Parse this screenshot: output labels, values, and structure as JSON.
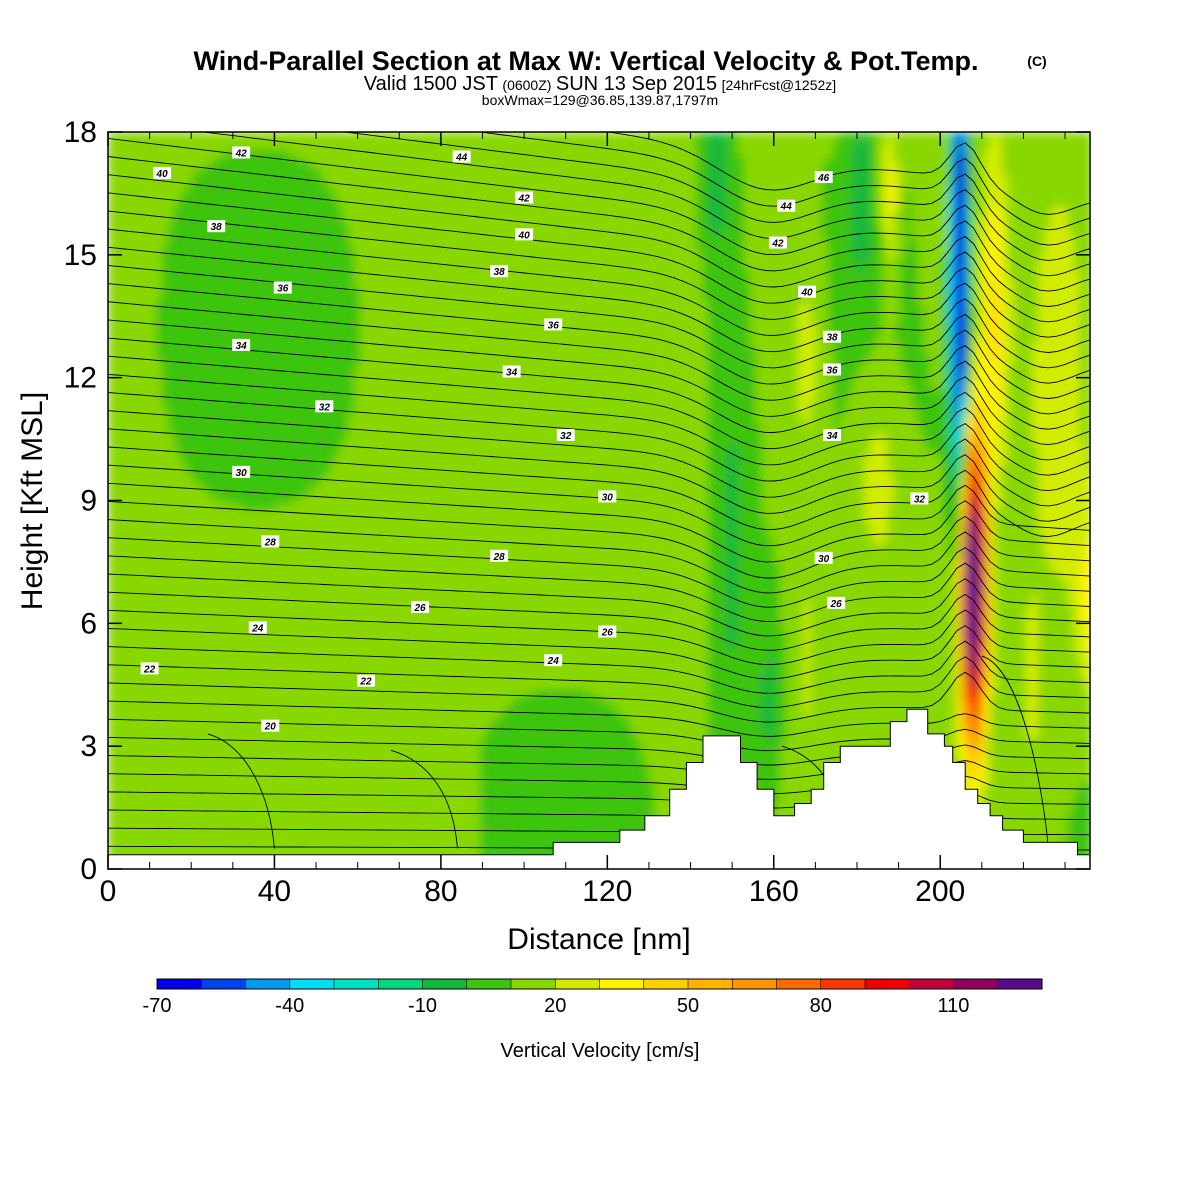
{
  "chart_data": {
    "type": "contour",
    "title": "Wind-Parallel Section at Max W: Vertical Velocity & Pot.Temp.",
    "title_mark": "(C)",
    "subtitle_line1_main": "Valid 1500 JST",
    "subtitle_line1_utc": "(0600Z)",
    "subtitle_line1_date": "SUN 13 Sep 2015",
    "subtitle_line1_fcst": "[24hrFcst@1252z]",
    "subtitle_line2": "boxWmax=129@36.85,139.87,1797m",
    "xlabel": "Distance [nm]",
    "ylabel": "Height [Kft MSL]",
    "xlim": [
      0,
      236
    ],
    "ylim": [
      0,
      18
    ],
    "x_ticks": [
      0,
      40,
      80,
      120,
      160,
      200
    ],
    "y_ticks": [
      0,
      3,
      6,
      9,
      12,
      15,
      18
    ],
    "colorbar": {
      "label": "Vertical Velocity [cm/s]",
      "levels": [
        -70,
        -40,
        -10,
        20,
        50,
        80,
        110
      ],
      "tick_labels": [
        "-70",
        "-40",
        "-10",
        "20",
        "50",
        "80",
        "110"
      ],
      "colors": [
        "#0000ee",
        "#0044f0",
        "#0099ee",
        "#00ddf5",
        "#00e0c4",
        "#00d67a",
        "#12b83c",
        "#3cc40e",
        "#88d800",
        "#d2ec00",
        "#fff200",
        "#ffd000",
        "#ffb100",
        "#ff9400",
        "#ff6a00",
        "#ff3800",
        "#ee0000",
        "#c2003a",
        "#8f0060",
        "#5a0a8c"
      ]
    },
    "contour_labels": [
      {
        "text": "42",
        "x": 32,
        "y": 17.5
      },
      {
        "text": "44",
        "x": 85,
        "y": 17.4
      },
      {
        "text": "40",
        "x": 13,
        "y": 17.0
      },
      {
        "text": "46",
        "x": 172,
        "y": 16.9
      },
      {
        "text": "42",
        "x": 100,
        "y": 16.4
      },
      {
        "text": "44",
        "x": 163,
        "y": 16.2
      },
      {
        "text": "38",
        "x": 26,
        "y": 15.7
      },
      {
        "text": "40",
        "x": 100,
        "y": 15.5
      },
      {
        "text": "42",
        "x": 161,
        "y": 15.3
      },
      {
        "text": "38",
        "x": 94,
        "y": 14.6
      },
      {
        "text": "36",
        "x": 42,
        "y": 14.2
      },
      {
        "text": "40",
        "x": 168,
        "y": 14.1
      },
      {
        "text": "36",
        "x": 107,
        "y": 13.3
      },
      {
        "text": "38",
        "x": 174,
        "y": 13.0
      },
      {
        "text": "34",
        "x": 32,
        "y": 12.8
      },
      {
        "text": "36",
        "x": 174,
        "y": 12.2
      },
      {
        "text": "34",
        "x": 97,
        "y": 12.15
      },
      {
        "text": "32",
        "x": 52,
        "y": 11.3
      },
      {
        "text": "32",
        "x": 110,
        "y": 10.6
      },
      {
        "text": "34",
        "x": 174,
        "y": 10.6
      },
      {
        "text": "30",
        "x": 32,
        "y": 9.7
      },
      {
        "text": "30",
        "x": 120,
        "y": 9.1
      },
      {
        "text": "32",
        "x": 195,
        "y": 9.05
      },
      {
        "text": "28",
        "x": 39,
        "y": 8.0
      },
      {
        "text": "28",
        "x": 94,
        "y": 7.65
      },
      {
        "text": "30",
        "x": 172,
        "y": 7.6
      },
      {
        "text": "26",
        "x": 75,
        "y": 6.4
      },
      {
        "text": "26",
        "x": 175,
        "y": 6.5
      },
      {
        "text": "24",
        "x": 36,
        "y": 5.9
      },
      {
        "text": "26",
        "x": 120,
        "y": 5.8
      },
      {
        "text": "24",
        "x": 107,
        "y": 5.1
      },
      {
        "text": "22",
        "x": 10,
        "y": 4.9
      },
      {
        "text": "22",
        "x": 62,
        "y": 4.6
      },
      {
        "text": "20",
        "x": 39,
        "y": 3.5
      }
    ],
    "terrain_profile": [
      [
        0,
        0.35
      ],
      [
        107,
        0.35
      ],
      [
        107,
        0.65
      ],
      [
        123,
        0.65
      ],
      [
        123,
        0.95
      ],
      [
        129,
        0.95
      ],
      [
        129,
        1.3
      ],
      [
        135,
        1.3
      ],
      [
        135,
        1.95
      ],
      [
        139,
        1.95
      ],
      [
        139,
        2.6
      ],
      [
        143,
        2.6
      ],
      [
        143,
        3.25
      ],
      [
        152,
        3.25
      ],
      [
        152,
        2.6
      ],
      [
        156,
        2.6
      ],
      [
        156,
        1.95
      ],
      [
        160,
        1.95
      ],
      [
        160,
        1.3
      ],
      [
        165,
        1.3
      ],
      [
        165,
        1.6
      ],
      [
        169,
        1.6
      ],
      [
        169,
        1.95
      ],
      [
        172,
        1.95
      ],
      [
        172,
        2.6
      ],
      [
        176,
        2.6
      ],
      [
        176,
        3.0
      ],
      [
        188,
        3.0
      ],
      [
        188,
        3.6
      ],
      [
        192,
        3.6
      ],
      [
        192,
        3.9
      ],
      [
        197,
        3.9
      ],
      [
        197,
        3.3
      ],
      [
        201,
        3.3
      ],
      [
        201,
        3.0
      ],
      [
        203,
        3.0
      ],
      [
        203,
        2.6
      ],
      [
        206,
        2.6
      ],
      [
        206,
        1.95
      ],
      [
        209,
        1.95
      ],
      [
        209,
        1.6
      ],
      [
        212,
        1.6
      ],
      [
        212,
        1.3
      ],
      [
        215,
        1.3
      ],
      [
        215,
        0.95
      ],
      [
        220,
        0.95
      ],
      [
        220,
        0.65
      ],
      [
        233,
        0.65
      ],
      [
        233,
        0.35
      ],
      [
        236,
        0.35
      ]
    ]
  }
}
